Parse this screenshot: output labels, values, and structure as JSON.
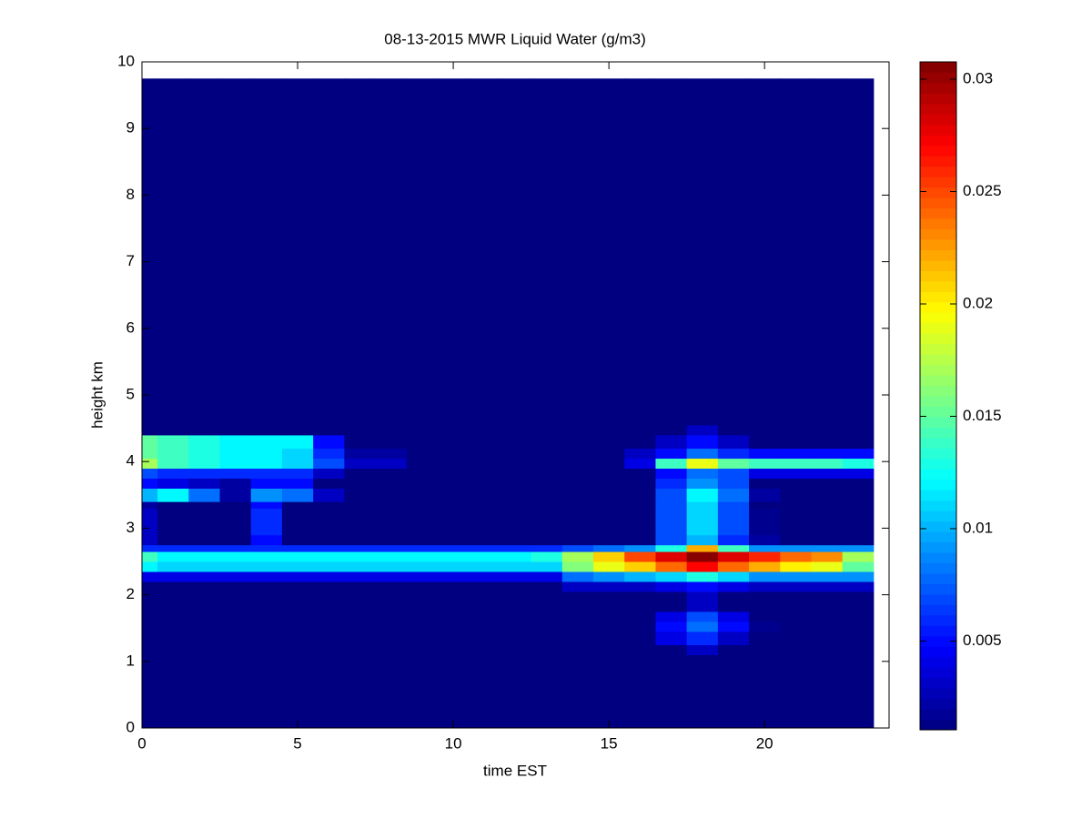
{
  "chart_data": {
    "type": "heatmap",
    "title": "08-13-2015 MWR Liquid Water (g/m3)",
    "xlabel": "time EST",
    "ylabel": "height km",
    "xlim": [
      0,
      24
    ],
    "ylim": [
      0,
      10
    ],
    "xticks": [
      0,
      5,
      10,
      15,
      20
    ],
    "yticks": [
      0,
      1,
      2,
      3,
      4,
      5,
      6,
      7,
      8,
      9,
      10
    ],
    "clim": [
      0.00105,
      0.03077
    ],
    "cticks": [
      0.005,
      0.01,
      0.015,
      0.02,
      0.025,
      0.03
    ],
    "colormap": "jet",
    "xbins": [
      0,
      0.5,
      1.5,
      2.5,
      3.5,
      4.5,
      5.5,
      6.5,
      7.5,
      8.5,
      9.5,
      10.5,
      11.5,
      12.5,
      13.5,
      14.5,
      15.5,
      16.5,
      17.5,
      18.5,
      19.5,
      20.5,
      21.5,
      22.5,
      23.5
    ],
    "ybins": [
      0,
      1.1,
      1.25,
      1.45,
      1.6,
      1.75,
      2.05,
      2.2,
      2.35,
      2.5,
      2.65,
      2.75,
      2.9,
      3.3,
      3.4,
      3.6,
      3.75,
      3.9,
      4.05,
      4.2,
      4.4,
      4.55,
      9.75
    ],
    "values": [
      [
        0.001,
        0.001,
        0.001,
        0.001,
        0.001,
        0.001,
        0.001,
        0.001,
        0.001,
        0.001,
        0.001,
        0.001,
        0.001,
        0.001,
        0.001,
        0.001,
        0.001,
        0.001,
        0.001,
        0.001,
        0.001,
        0.001,
        0.001,
        0.001
      ],
      [
        0.001,
        0.001,
        0.001,
        0.001,
        0.001,
        0.001,
        0.001,
        0.001,
        0.001,
        0.001,
        0.001,
        0.001,
        0.001,
        0.001,
        0.001,
        0.001,
        0.001,
        0.001,
        0.003,
        0.001,
        0.001,
        0.001,
        0.001,
        0.001
      ],
      [
        0.001,
        0.001,
        0.001,
        0.001,
        0.001,
        0.001,
        0.001,
        0.001,
        0.001,
        0.001,
        0.001,
        0.001,
        0.001,
        0.001,
        0.001,
        0.001,
        0.001,
        0.004,
        0.006,
        0.003,
        0.001,
        0.001,
        0.001,
        0.001
      ],
      [
        0.001,
        0.001,
        0.001,
        0.001,
        0.001,
        0.001,
        0.001,
        0.001,
        0.001,
        0.001,
        0.001,
        0.001,
        0.001,
        0.001,
        0.001,
        0.001,
        0.001,
        0.005,
        0.008,
        0.005,
        0.0015,
        0.001,
        0.001,
        0.001
      ],
      [
        0.001,
        0.001,
        0.001,
        0.001,
        0.001,
        0.001,
        0.001,
        0.001,
        0.001,
        0.001,
        0.001,
        0.001,
        0.001,
        0.001,
        0.001,
        0.001,
        0.001,
        0.004,
        0.007,
        0.004,
        0.001,
        0.001,
        0.001,
        0.001
      ],
      [
        0.001,
        0.001,
        0.001,
        0.001,
        0.001,
        0.001,
        0.001,
        0.001,
        0.001,
        0.001,
        0.001,
        0.001,
        0.001,
        0.001,
        0.001,
        0.001,
        0.001,
        0.001,
        0.003,
        0.001,
        0.001,
        0.001,
        0.001,
        0.001
      ],
      [
        0.001,
        0.001,
        0.001,
        0.001,
        0.001,
        0.001,
        0.001,
        0.001,
        0.001,
        0.001,
        0.001,
        0.001,
        0.001,
        0.001,
        0.003,
        0.003,
        0.003,
        0.004,
        0.005,
        0.004,
        0.003,
        0.003,
        0.003,
        0.003
      ],
      [
        0.004,
        0.004,
        0.004,
        0.004,
        0.004,
        0.004,
        0.004,
        0.004,
        0.004,
        0.004,
        0.004,
        0.004,
        0.004,
        0.004,
        0.008,
        0.009,
        0.01,
        0.011,
        0.013,
        0.011,
        0.009,
        0.009,
        0.009,
        0.009
      ],
      [
        0.012,
        0.011,
        0.011,
        0.011,
        0.011,
        0.011,
        0.011,
        0.011,
        0.011,
        0.011,
        0.011,
        0.011,
        0.011,
        0.011,
        0.016,
        0.019,
        0.021,
        0.024,
        0.027,
        0.024,
        0.022,
        0.02,
        0.019,
        0.015
      ],
      [
        0.014,
        0.012,
        0.012,
        0.012,
        0.012,
        0.012,
        0.012,
        0.012,
        0.012,
        0.012,
        0.012,
        0.012,
        0.012,
        0.013,
        0.017,
        0.021,
        0.025,
        0.028,
        0.0305,
        0.028,
        0.026,
        0.024,
        0.023,
        0.017
      ],
      [
        0.006,
        0.006,
        0.006,
        0.006,
        0.006,
        0.006,
        0.006,
        0.006,
        0.006,
        0.006,
        0.006,
        0.006,
        0.006,
        0.006,
        0.007,
        0.008,
        0.009,
        0.013,
        0.022,
        0.014,
        0.009,
        0.009,
        0.009,
        0.009
      ],
      [
        0.003,
        0.001,
        0.001,
        0.001,
        0.005,
        0.001,
        0.001,
        0.001,
        0.001,
        0.001,
        0.001,
        0.001,
        0.001,
        0.001,
        0.001,
        0.001,
        0.001,
        0.007,
        0.01,
        0.006,
        0.002,
        0.001,
        0.001,
        0.001
      ],
      [
        0.003,
        0.001,
        0.001,
        0.001,
        0.006,
        0.001,
        0.001,
        0.001,
        0.001,
        0.001,
        0.001,
        0.001,
        0.001,
        0.001,
        0.001,
        0.001,
        0.001,
        0.007,
        0.011,
        0.007,
        0.0015,
        0.001,
        0.001,
        0.001
      ],
      [
        0.002,
        0.001,
        0.001,
        0.001,
        0.005,
        0.001,
        0.001,
        0.001,
        0.001,
        0.001,
        0.001,
        0.001,
        0.001,
        0.001,
        0.001,
        0.001,
        0.001,
        0.007,
        0.011,
        0.007,
        0.001,
        0.001,
        0.001,
        0.001
      ],
      [
        0.01,
        0.012,
        0.008,
        0.002,
        0.009,
        0.008,
        0.003,
        0.001,
        0.001,
        0.001,
        0.001,
        0.001,
        0.001,
        0.001,
        0.001,
        0.001,
        0.001,
        0.007,
        0.012,
        0.008,
        0.002,
        0.001,
        0.001,
        0.001
      ],
      [
        0.005,
        0.004,
        0.003,
        0.002,
        0.005,
        0.005,
        0.001,
        0.001,
        0.001,
        0.001,
        0.001,
        0.001,
        0.001,
        0.001,
        0.001,
        0.001,
        0.001,
        0.006,
        0.009,
        0.007,
        0.001,
        0.001,
        0.001,
        0.001
      ],
      [
        0.007,
        0.006,
        0.006,
        0.006,
        0.006,
        0.006,
        0.003,
        0.001,
        0.001,
        0.001,
        0.001,
        0.001,
        0.001,
        0.001,
        0.001,
        0.001,
        0.001,
        0.005,
        0.008,
        0.007,
        0.004,
        0.004,
        0.004,
        0.004
      ],
      [
        0.017,
        0.014,
        0.013,
        0.012,
        0.012,
        0.011,
        0.007,
        0.003,
        0.003,
        0.001,
        0.001,
        0.001,
        0.001,
        0.001,
        0.001,
        0.001,
        0.004,
        0.014,
        0.019,
        0.015,
        0.014,
        0.014,
        0.014,
        0.013
      ],
      [
        0.015,
        0.014,
        0.013,
        0.012,
        0.012,
        0.011,
        0.006,
        0.002,
        0.002,
        0.001,
        0.001,
        0.001,
        0.001,
        0.001,
        0.001,
        0.001,
        0.003,
        0.005,
        0.008,
        0.006,
        0.005,
        0.005,
        0.005,
        0.005
      ],
      [
        0.015,
        0.014,
        0.013,
        0.012,
        0.012,
        0.012,
        0.005,
        0.001,
        0.001,
        0.001,
        0.001,
        0.001,
        0.001,
        0.001,
        0.001,
        0.001,
        0.001,
        0.003,
        0.005,
        0.003,
        0.001,
        0.001,
        0.001,
        0.001
      ],
      [
        0.001,
        0.001,
        0.001,
        0.001,
        0.001,
        0.001,
        0.001,
        0.001,
        0.001,
        0.001,
        0.001,
        0.001,
        0.001,
        0.001,
        0.001,
        0.001,
        0.001,
        0.001,
        0.003,
        0.001,
        0.001,
        0.001,
        0.001,
        0.001
      ],
      [
        0.001,
        0.001,
        0.001,
        0.001,
        0.001,
        0.001,
        0.001,
        0.001,
        0.001,
        0.001,
        0.001,
        0.001,
        0.001,
        0.001,
        0.001,
        0.001,
        0.001,
        0.001,
        0.001,
        0.001,
        0.001,
        0.001,
        0.001,
        0.001
      ]
    ]
  }
}
